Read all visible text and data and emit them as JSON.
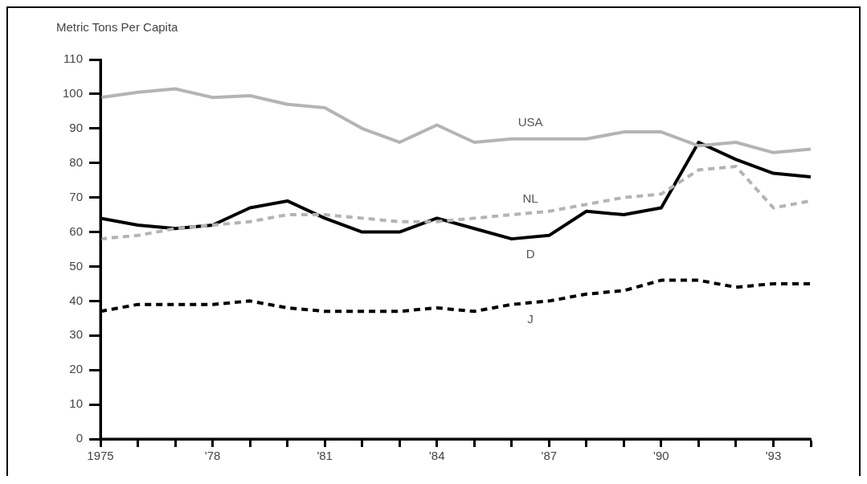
{
  "chart_data": {
    "type": "line",
    "ylabel": "Metric Tons Per Capita",
    "x": [
      1975,
      1976,
      1977,
      1978,
      1979,
      1980,
      1981,
      1982,
      1983,
      1984,
      1985,
      1986,
      1987,
      1988,
      1989,
      1990,
      1991,
      1992,
      1993,
      1994
    ],
    "series": [
      {
        "name": "USA",
        "color": "#b4b4b4",
        "line_style": "solid",
        "values": [
          99,
          100.5,
          101.5,
          99,
          99.5,
          97,
          96,
          90,
          86,
          91,
          86,
          87,
          87,
          87,
          89,
          89,
          85,
          86,
          83,
          84
        ]
      },
      {
        "name": "NL",
        "color": "#b4b4b4",
        "line_style": "dashed",
        "values": [
          58,
          59,
          61,
          62,
          63,
          65,
          65,
          64,
          63,
          63,
          64,
          65,
          66,
          68,
          70,
          71,
          78,
          79,
          67,
          69
        ]
      },
      {
        "name": "D",
        "color": "#000000",
        "line_style": "solid",
        "values": [
          64,
          62,
          61,
          62,
          67,
          69,
          64,
          60,
          60,
          64,
          61,
          58,
          59,
          66,
          65,
          67,
          86,
          81,
          77,
          76
        ]
      },
      {
        "name": "J",
        "color": "#000000",
        "line_style": "dashed",
        "values": [
          37,
          39,
          39,
          39,
          40,
          38,
          37,
          37,
          37,
          38,
          37,
          39,
          40,
          42,
          43,
          46,
          46,
          44,
          45,
          45
        ]
      }
    ],
    "xlim": [
      1975,
      1994
    ],
    "xticks": [
      1975,
      {
        "value": 1976,
        "label": null
      },
      {
        "value": 1977,
        "label": null
      },
      {
        "value": 1978,
        "label": "'78"
      },
      {
        "value": 1979,
        "label": null
      },
      {
        "value": 1980,
        "label": null
      },
      {
        "value": 1981,
        "label": "'81"
      },
      {
        "value": 1982,
        "label": null
      },
      {
        "value": 1983,
        "label": null
      },
      {
        "value": 1984,
        "label": "'84"
      },
      {
        "value": 1985,
        "label": null
      },
      {
        "value": 1986,
        "label": null
      },
      {
        "value": 1987,
        "label": "'87"
      },
      {
        "value": 1988,
        "label": null
      },
      {
        "value": 1989,
        "label": null
      },
      {
        "value": 1990,
        "label": "'90"
      },
      {
        "value": 1991,
        "label": null
      },
      {
        "value": 1992,
        "label": null
      },
      {
        "value": 1993,
        "label": "'93"
      },
      {
        "value": 1994,
        "label": null
      }
    ],
    "ylim": [
      0,
      110
    ],
    "yticks": [
      0,
      10,
      20,
      30,
      40,
      50,
      60,
      70,
      80,
      90,
      100,
      110
    ],
    "grid": false,
    "legend": false,
    "marker": "none"
  }
}
